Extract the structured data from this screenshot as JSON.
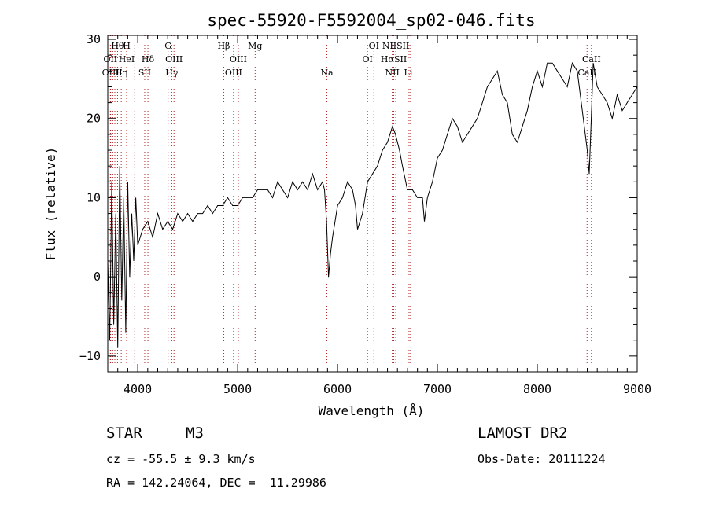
{
  "chart_data": {
    "type": "line",
    "title": "spec-55920-F5592004_sp02-046.fits",
    "xlabel": "Wavelength (Å)",
    "ylabel": "Flux (relative)",
    "xlim": [
      3700,
      9000
    ],
    "ylim": [
      -12,
      30.5
    ],
    "x_ticks": [
      4000,
      5000,
      6000,
      7000,
      8000,
      9000
    ],
    "y_ticks": [
      -10,
      0,
      10,
      20,
      30
    ],
    "grid": false,
    "series": [
      {
        "x": [
          3700,
          3720,
          3740,
          3760,
          3780,
          3800,
          3820,
          3840,
          3860,
          3880,
          3900,
          3920,
          3940,
          3960,
          3980,
          4000,
          4050,
          4100,
          4150,
          4200,
          4250,
          4300,
          4350,
          4400,
          4450,
          4500,
          4550,
          4600,
          4650,
          4700,
          4750,
          4800,
          4850,
          4900,
          4950,
          5000,
          5050,
          5100,
          5150,
          5200,
          5250,
          5300,
          5350,
          5400,
          5450,
          5500,
          5550,
          5600,
          5650,
          5700,
          5750,
          5800,
          5850,
          5870,
          5890,
          5910,
          5930,
          5950,
          6000,
          6050,
          6100,
          6150,
          6180,
          6200,
          6250,
          6300,
          6350,
          6400,
          6450,
          6500,
          6550,
          6580,
          6620,
          6650,
          6700,
          6750,
          6800,
          6850,
          6870,
          6900,
          6950,
          7000,
          7050,
          7100,
          7150,
          7200,
          7250,
          7300,
          7350,
          7400,
          7450,
          7500,
          7550,
          7600,
          7650,
          7700,
          7750,
          7800,
          7850,
          7900,
          7950,
          8000,
          8050,
          8100,
          8150,
          8200,
          8250,
          8300,
          8350,
          8400,
          8450,
          8480,
          8500,
          8520,
          8540,
          8560,
          8600,
          8650,
          8700,
          8750,
          8800,
          8850,
          8900,
          8950,
          9000
        ],
        "values": [
          2,
          -8,
          12,
          -6,
          8,
          -9,
          14,
          -3,
          10,
          -7,
          12,
          0,
          8,
          2,
          10,
          4,
          6,
          7,
          5,
          8,
          6,
          7,
          6,
          8,
          7,
          8,
          7,
          8,
          8,
          9,
          8,
          9,
          9,
          10,
          9,
          9,
          10,
          10,
          10,
          11,
          11,
          11,
          10,
          12,
          11,
          10,
          12,
          11,
          12,
          11,
          13,
          11,
          12,
          11,
          7,
          0,
          3,
          5,
          9,
          10,
          12,
          11,
          9,
          6,
          8,
          12,
          13,
          14,
          16,
          17,
          19,
          18,
          16,
          14,
          11,
          11,
          10,
          10,
          7,
          10,
          12,
          15,
          16,
          18,
          20,
          19,
          17,
          18,
          19,
          20,
          22,
          24,
          25,
          26,
          23,
          22,
          18,
          17,
          19,
          21,
          24,
          26,
          24,
          27,
          27,
          26,
          25,
          24,
          27,
          26,
          21,
          18,
          16,
          13,
          20,
          27,
          24,
          23,
          22,
          20,
          23,
          21,
          22,
          23,
          24
        ]
      }
    ],
    "spectral_lines": [
      {
        "label": "Hθ",
        "wavelength": 3798,
        "row": 1
      },
      {
        "label": "H",
        "wavelength": 3889,
        "row": 1
      },
      {
        "label": "OII",
        "wavelength": 3726,
        "row": 2
      },
      {
        "label": "HeI",
        "wavelength": 3889,
        "row": 2
      },
      {
        "label": "Hδ",
        "wavelength": 4102,
        "row": 2
      },
      {
        "label": "OIII",
        "wavelength": 3729,
        "row": 3
      },
      {
        "label": "Hη",
        "wavelength": 3835,
        "row": 3
      },
      {
        "label": "SII",
        "wavelength": 4070,
        "row": 3
      },
      {
        "label": "G",
        "wavelength": 4304,
        "row": 1
      },
      {
        "label": "OIII",
        "wavelength": 4363,
        "row": 2
      },
      {
        "label": "Hγ",
        "wavelength": 4341,
        "row": 3
      },
      {
        "label": "Hβ",
        "wavelength": 4861,
        "row": 1
      },
      {
        "label": "Mg",
        "wavelength": 5175,
        "row": 1
      },
      {
        "label": "OIII",
        "wavelength": 5007,
        "row": 2
      },
      {
        "label": "OIII",
        "wavelength": 4959,
        "row": 3
      },
      {
        "label": "Na",
        "wavelength": 5893,
        "row": 3
      },
      {
        "label": "OI",
        "wavelength": 6364,
        "row": 1
      },
      {
        "label": "OI",
        "wavelength": 6300,
        "row": 2
      },
      {
        "label": "NIISII",
        "wavelength": 6583,
        "row": 1
      },
      {
        "label": "HαSII",
        "wavelength": 6563,
        "row": 2
      },
      {
        "label": "NII",
        "wavelength": 6548,
        "row": 3
      },
      {
        "label": "Li",
        "wavelength": 6708,
        "row": 3
      },
      {
        "label": "CaII",
        "wavelength": 8542,
        "row": 2
      },
      {
        "label": "CaII",
        "wavelength": 8498,
        "row": 3
      }
    ],
    "line_marker_wavelengths": [
      3726,
      3729,
      3750,
      3771,
      3798,
      3835,
      3889,
      3970,
      4070,
      4102,
      4304,
      4341,
      4363,
      4861,
      4959,
      5007,
      5175,
      5893,
      6300,
      6364,
      6548,
      6563,
      6583,
      6716,
      6731,
      8498,
      8542
    ]
  },
  "info": {
    "object_class": "STAR",
    "subclass": "M3",
    "survey": "LAMOST DR2",
    "redshift": "cz = -55.5 ± 9.3 km/s",
    "obs_date": "Obs-Date: 20111224",
    "coords": "RA = 142.24064, DEC =  11.29986"
  },
  "colors": {
    "spectrum": "#000000",
    "line_marker": "#b22222",
    "background": "#ffffff"
  }
}
